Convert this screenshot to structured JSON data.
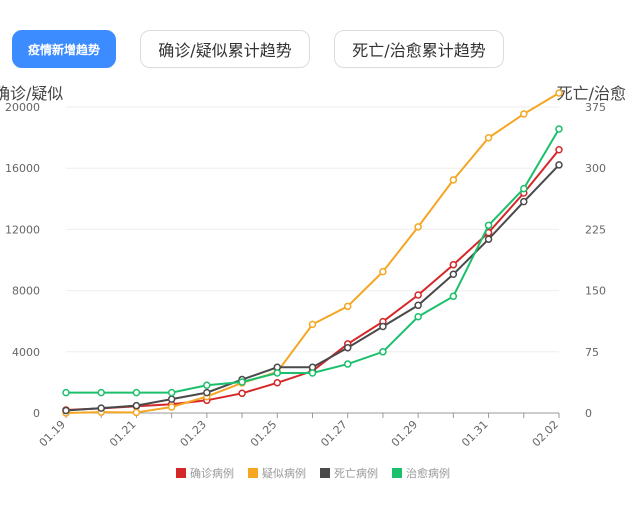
{
  "tabs": [
    {
      "label": "疫情新增趋势",
      "active": true
    },
    {
      "label": "确诊/疑似累计趋势",
      "active": false
    },
    {
      "label": "死亡/治愈累计趋势",
      "active": false
    }
  ],
  "chart_data": {
    "type": "line",
    "x": [
      "01.19",
      "01.20",
      "01.21",
      "01.22",
      "01.23",
      "01.24",
      "01.25",
      "01.26",
      "01.27",
      "01.28",
      "01.29",
      "01.30",
      "01.31",
      "02.01",
      "02.02"
    ],
    "x_tick_labels": [
      "01.19",
      "01.21",
      "01.23",
      "01.25",
      "01.27",
      "01.29",
      "01.31",
      "02.02"
    ],
    "ylabel_left": "确诊/疑似",
    "ylabel_right": "死亡/治愈",
    "ylim_left": [
      0,
      20000
    ],
    "ylim_right": [
      0,
      375
    ],
    "yticks_left": [
      0,
      4000,
      8000,
      12000,
      16000,
      20000
    ],
    "yticks_right": [
      0,
      75,
      150,
      225,
      300,
      375
    ],
    "grid": true,
    "legend_position": "bottom",
    "series": [
      {
        "name": "确诊病例",
        "axis": "left",
        "color": "#d62728",
        "values": [
          200,
          300,
          440,
          571,
          830,
          1287,
          1975,
          2744,
          4515,
          5974,
          7711,
          9692,
          11791,
          14380,
          17205
        ]
      },
      {
        "name": "疑似病例",
        "axis": "left",
        "color": "#f5a623",
        "values": [
          0,
          54,
          37,
          393,
          1072,
          1965,
          2684,
          5794,
          6973,
          9239,
          12167,
          15238,
          17988,
          19544,
          21558
        ]
      },
      {
        "name": "死亡病例",
        "axis": "right",
        "color": "#4a4a4a",
        "values": [
          3,
          6,
          9,
          17,
          25,
          41,
          56,
          56,
          80,
          106,
          132,
          170,
          213,
          259,
          304
        ]
      },
      {
        "name": "治愈病例",
        "axis": "right",
        "color": "#1cbf6c",
        "values": [
          25,
          25,
          25,
          25,
          34,
          38,
          49,
          49,
          60,
          75,
          118,
          143,
          230,
          275,
          348
        ]
      }
    ]
  }
}
